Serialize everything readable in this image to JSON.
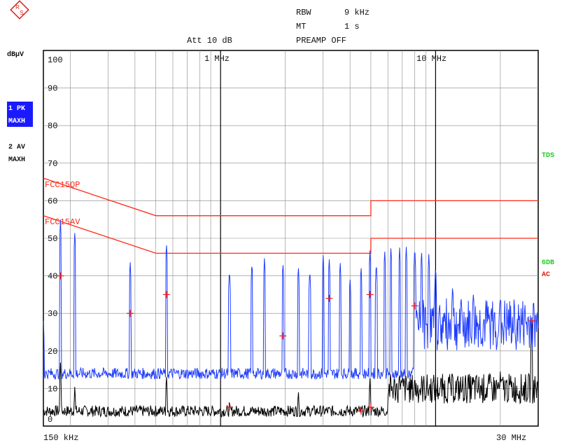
{
  "header": {
    "rbw_label": "RBW",
    "rbw_value": "9 kHz",
    "mt_label": "MT",
    "mt_value": "1 s",
    "att": "Att 10 dB",
    "preamp": "PREAMP OFF"
  },
  "left_panel": {
    "unit": "dBµV",
    "trace1_line1": "1 PK",
    "trace1_line2": "MAXH",
    "trace2_line1": "2 AV",
    "trace2_line2": "MAXH"
  },
  "right_panel": {
    "tds": "TDS",
    "db6": "6DB",
    "ac": "AC"
  },
  "colors": {
    "trace_pk": "#1f3dff",
    "trace_av": "#000000",
    "limit": "#ff2a1a",
    "highlight_bg": "#1a1aff",
    "green": "#22cc22",
    "red_text": "#e0201a"
  },
  "chart_data": {
    "type": "line",
    "xscale": "log",
    "xlim_hz": [
      150000,
      30000000
    ],
    "ylim": [
      0,
      100
    ],
    "ylabel": "dBµV",
    "ytick_labels": [
      "0",
      "10",
      "20",
      "30",
      "40",
      "50",
      "60",
      "70",
      "80",
      "90",
      "100"
    ],
    "x_start_label": "150 kHz",
    "x_end_label": "30 MHz",
    "x_markers": [
      {
        "label": "1 MHz",
        "hz": 1000000
      },
      {
        "label": "10 MHz",
        "hz": 10000000
      }
    ],
    "limit_lines": [
      {
        "name": "FCC15QP",
        "points_hz_db": [
          [
            150000,
            66
          ],
          [
            500000,
            56
          ],
          [
            5000000,
            56
          ],
          [
            5000000,
            60
          ],
          [
            30000000,
            60
          ]
        ]
      },
      {
        "name": "FCC15AV",
        "points_hz_db": [
          [
            150000,
            56
          ],
          [
            500000,
            46
          ],
          [
            5000000,
            46
          ],
          [
            5000000,
            50
          ],
          [
            30000000,
            50
          ]
        ]
      }
    ],
    "markers": [
      {
        "hz": 180000,
        "db": 40
      },
      {
        "hz": 380000,
        "db": 30
      },
      {
        "hz": 560000,
        "db": 35
      },
      {
        "hz": 1100000,
        "db": 5
      },
      {
        "hz": 1950000,
        "db": 24
      },
      {
        "hz": 3200000,
        "db": 34
      },
      {
        "hz": 4500000,
        "db": 4
      },
      {
        "hz": 4950000,
        "db": 35
      },
      {
        "hz": 5000000,
        "db": 5
      },
      {
        "hz": 8000000,
        "db": 32
      },
      {
        "hz": 28000000,
        "db": 28
      }
    ],
    "series": [
      {
        "values_desc": "peak max hold",
        "baseline_db": 14,
        "peaks_hz_db": [
          [
            150000,
            28
          ],
          [
            180000,
            55
          ],
          [
            210000,
            52
          ],
          [
            380000,
            44
          ],
          [
            560000,
            49
          ],
          [
            1100000,
            42
          ],
          [
            1400000,
            44
          ],
          [
            1600000,
            45
          ],
          [
            1950000,
            44
          ],
          [
            2300000,
            43
          ],
          [
            2600000,
            42
          ],
          [
            3000000,
            46
          ],
          [
            3200000,
            45
          ],
          [
            3600000,
            44
          ],
          [
            4000000,
            40
          ],
          [
            4500000,
            43
          ],
          [
            4950000,
            47
          ],
          [
            5300000,
            44
          ],
          [
            5800000,
            47
          ],
          [
            6200000,
            48
          ],
          [
            6800000,
            48
          ],
          [
            7300000,
            48
          ],
          [
            8000000,
            48
          ],
          [
            8600000,
            47
          ],
          [
            9300000,
            46
          ],
          [
            10000000,
            43
          ],
          [
            12000000,
            38
          ],
          [
            15000000,
            36
          ],
          [
            20000000,
            34
          ],
          [
            26000000,
            33
          ],
          [
            30000000,
            26
          ]
        ]
      },
      {
        "values_desc": "average max hold",
        "baseline_db": 4,
        "peaks_hz_db": [
          [
            180000,
            17
          ],
          [
            210000,
            11
          ],
          [
            560000,
            14
          ],
          [
            1100000,
            8
          ],
          [
            2300000,
            10
          ],
          [
            4950000,
            13
          ],
          [
            6800000,
            14
          ],
          [
            8000000,
            14
          ],
          [
            10000000,
            12
          ],
          [
            15000000,
            14
          ],
          [
            20000000,
            15
          ],
          [
            28000000,
            30
          ]
        ]
      }
    ]
  }
}
